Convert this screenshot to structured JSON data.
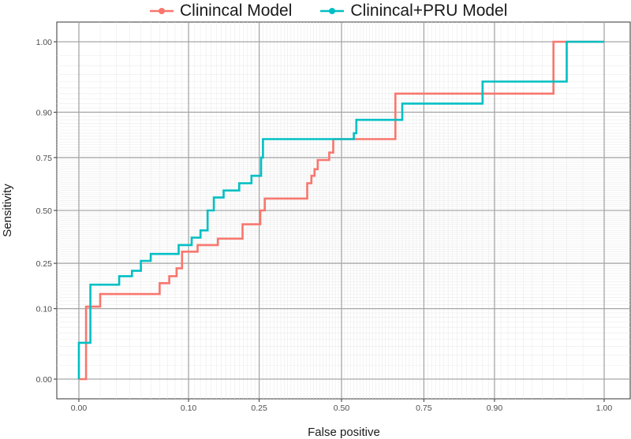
{
  "chart_data": {
    "type": "line",
    "title": "",
    "xlabel": "False positive",
    "ylabel": "Sensitivity",
    "xlim": [
      0,
      1
    ],
    "ylim": [
      0,
      1
    ],
    "x_ticks": [
      "0.00",
      "0.10",
      "0.25",
      "0.50",
      "0.75",
      "0.90",
      "1.00"
    ],
    "y_ticks": [
      "0.00",
      "0.10",
      "0.25",
      "0.50",
      "0.75",
      "0.90",
      "1.00"
    ],
    "axis_scale": "probit-like",
    "grid": true,
    "legend_position": "top",
    "series": [
      {
        "name": "Clinincal Model",
        "color": "#F8766D",
        "x": [
          0.0,
          0.003,
          0.003,
          0.01,
          0.01,
          0.018,
          0.018,
          0.06,
          0.06,
          0.072,
          0.072,
          0.082,
          0.082,
          0.09,
          0.09,
          0.095,
          0.095,
          0.115,
          0.115,
          0.153,
          0.153,
          0.208,
          0.208,
          0.253,
          0.253,
          0.265,
          0.265,
          0.39,
          0.39,
          0.403,
          0.403,
          0.413,
          0.413,
          0.423,
          0.423,
          0.46,
          0.46,
          0.473,
          0.473,
          0.485,
          0.485,
          0.67,
          0.67,
          0.97,
          0.97,
          1.0
        ],
        "y": [
          0.0,
          0.0,
          0.105,
          0.105,
          0.14,
          0.14,
          0.14,
          0.14,
          0.175,
          0.175,
          0.2,
          0.2,
          0.23,
          0.23,
          0.3,
          0.3,
          0.3,
          0.3,
          0.33,
          0.33,
          0.36,
          0.36,
          0.43,
          0.43,
          0.5,
          0.5,
          0.56,
          0.56,
          0.635,
          0.635,
          0.67,
          0.67,
          0.7,
          0.7,
          0.74,
          0.74,
          0.77,
          0.77,
          0.82,
          0.82,
          0.82,
          0.82,
          0.94,
          0.94,
          1.0,
          1.0
        ]
      },
      {
        "name": "Clinincal+PRU Model",
        "color": "#00BFC4",
        "x": [
          0.0,
          0.0,
          0.005,
          0.005,
          0.022,
          0.022,
          0.032,
          0.032,
          0.04,
          0.04,
          0.05,
          0.05,
          0.085,
          0.085,
          0.105,
          0.105,
          0.12,
          0.12,
          0.133,
          0.133,
          0.145,
          0.145,
          0.165,
          0.165,
          0.2,
          0.2,
          0.23,
          0.23,
          0.255,
          0.255,
          0.26,
          0.26,
          0.54,
          0.54,
          0.548,
          0.548,
          0.68,
          0.68,
          0.69,
          0.69,
          0.88,
          0.88,
          0.98,
          0.98,
          1.0
        ],
        "y": [
          0.0,
          0.035,
          0.035,
          0.17,
          0.17,
          0.2,
          0.2,
          0.22,
          0.22,
          0.26,
          0.26,
          0.29,
          0.29,
          0.33,
          0.33,
          0.365,
          0.365,
          0.4,
          0.4,
          0.5,
          0.5,
          0.565,
          0.565,
          0.6,
          0.6,
          0.635,
          0.635,
          0.67,
          0.67,
          0.75,
          0.75,
          0.82,
          0.82,
          0.84,
          0.84,
          0.88,
          0.88,
          0.88,
          0.88,
          0.92,
          0.92,
          0.96,
          0.96,
          1.0,
          1.0
        ]
      }
    ]
  }
}
